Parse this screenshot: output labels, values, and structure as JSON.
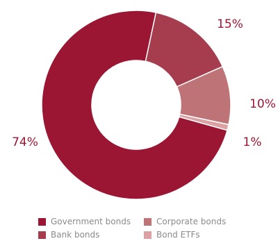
{
  "chart_data": {
    "type": "pie",
    "style": "donut",
    "slices": [
      {
        "name": "Government bonds",
        "value": 74,
        "label": "74%",
        "color": "#9b1633",
        "label_color": "#9b1633"
      },
      {
        "name": "Bank bonds",
        "value": 15,
        "label": "15%",
        "color": "#a53d4e",
        "label_color": "#9b1633"
      },
      {
        "name": "Corporate bonds",
        "value": 10,
        "label": "10%",
        "color": "#be7377",
        "label_color": "#9b1633"
      },
      {
        "name": "Bond ETFs",
        "value": 1,
        "label": "1%",
        "color": "#dba1a3",
        "label_color": "#9b1633"
      }
    ],
    "legend": {
      "placement": "bottom",
      "items": [
        {
          "name": "Government bonds",
          "color": "#9b1633"
        },
        {
          "name": "Corporate bonds",
          "color": "#be7377"
        },
        {
          "name": "Bank bonds",
          "color": "#a53d4e"
        },
        {
          "name": "Bond ETFs",
          "color": "#dba1a3"
        }
      ]
    }
  }
}
